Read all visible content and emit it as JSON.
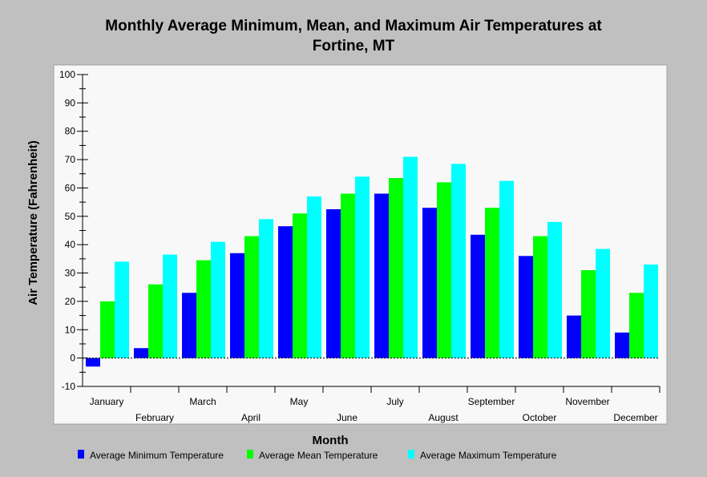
{
  "chart_data": {
    "type": "bar",
    "title_line1": "Monthly Average Minimum, Mean, and Maximum Air Temperatures at",
    "title_line2": "Fortine, MT",
    "xlabel": "Month",
    "ylabel": "Air Temperature (Fahrenheit)",
    "ylim": [
      -10,
      100
    ],
    "yticks": [
      -10,
      0,
      10,
      20,
      30,
      40,
      50,
      60,
      70,
      80,
      90,
      100
    ],
    "grid": false,
    "legend_position": "bottom",
    "categories": [
      "January",
      "February",
      "March",
      "April",
      "May",
      "June",
      "July",
      "August",
      "September",
      "October",
      "November",
      "December"
    ],
    "series": [
      {
        "name": "Average Minimum Temperature",
        "color": "#0000ff",
        "values": [
          -3,
          3.5,
          23,
          37,
          46.5,
          52.5,
          58,
          53,
          43.5,
          36,
          15,
          9
        ]
      },
      {
        "name": "Average Mean Temperature",
        "color": "#00ff00",
        "values": [
          20,
          26,
          34.5,
          43,
          51,
          58,
          63.5,
          62,
          53,
          43,
          31,
          23
        ]
      },
      {
        "name": "Average Maximum Temperature",
        "color": "#00ffff",
        "values": [
          34,
          36.5,
          41,
          49,
          57,
          64,
          71,
          68.5,
          62.5,
          48,
          38.5,
          33
        ]
      }
    ]
  }
}
